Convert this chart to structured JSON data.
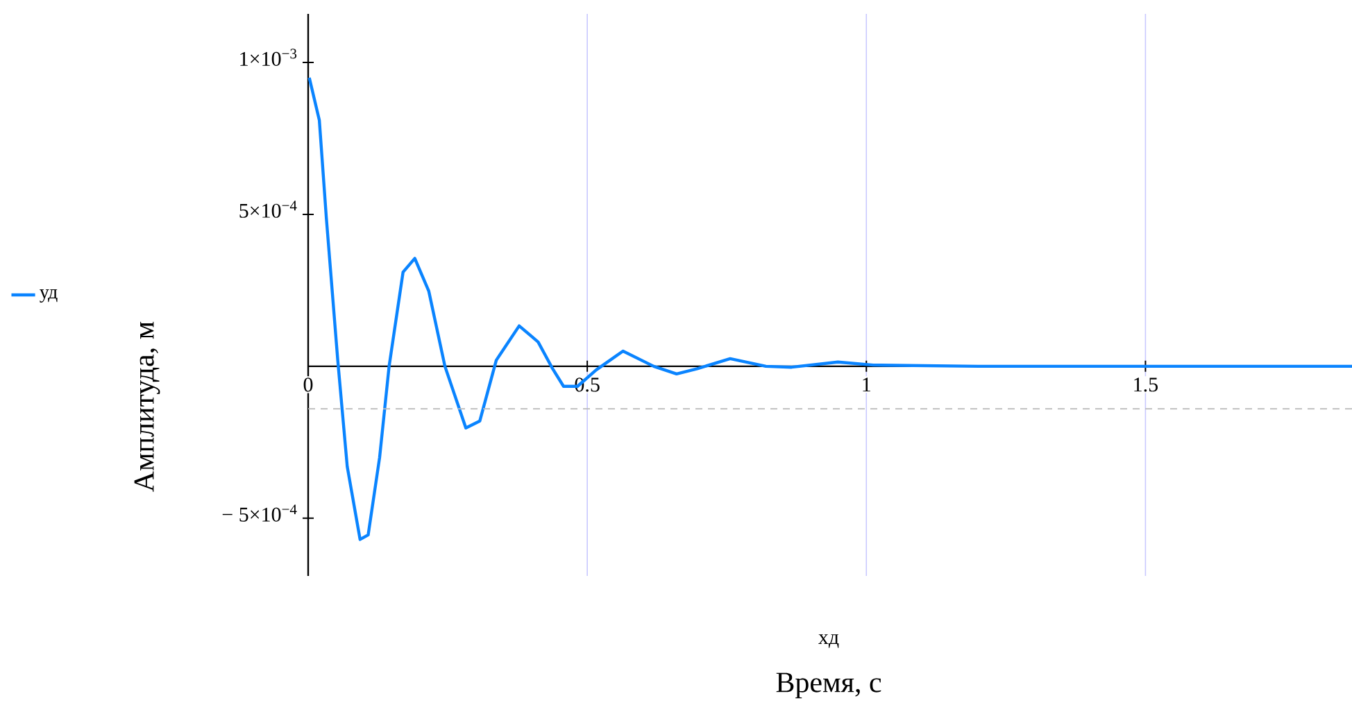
{
  "chart_data": {
    "type": "line",
    "xlabel": "Время, с",
    "ylabel": "Амплитуда, м",
    "annotations": [
      "хд"
    ],
    "x": [
      0.002,
      0.02,
      0.0325,
      0.053,
      0.07,
      0.093,
      0.1075,
      0.128,
      0.145,
      0.17,
      0.191,
      0.216,
      0.245,
      0.2825,
      0.3075,
      0.337,
      0.378,
      0.412,
      0.437,
      0.4575,
      0.4825,
      0.516,
      0.564,
      0.619,
      0.66,
      0.697,
      0.756,
      0.82,
      0.866,
      0.949,
      1.0125,
      1.2,
      1.5,
      1.87
    ],
    "series": [
      {
        "name": "уд",
        "color": "#0a84ff",
        "values": [
          0.00095,
          0.00081,
          0.00049,
          2e-05,
          -0.00033,
          -0.00057,
          -0.000555,
          -0.0003,
          0,
          0.00031,
          0.000355,
          0.000248,
          0,
          -0.000203,
          -0.00018,
          2e-05,
          0.000133,
          8e-05,
          -5e-06,
          -6.6e-05,
          -6.6e-05,
          -1.2e-05,
          5e-05,
          0,
          -2.5e-05,
          -8e-06,
          2.5e-05,
          0,
          -3e-06,
          1.4e-05,
          4e-06,
          0,
          0,
          0
        ]
      }
    ],
    "xlim": [
      0,
      1.87
    ],
    "ylim": [
      -0.00069,
      0.00116
    ],
    "xticks": [
      0,
      0.5,
      1,
      1.5
    ],
    "yticks": [
      {
        "value": -0.0005,
        "label": "− 5×10$^{−4}$"
      },
      {
        "value": 0.0005,
        "label": "5×10$^{−4}$"
      },
      {
        "value": 0.001,
        "label": "1×10$^{−3}$"
      }
    ],
    "ref_lines": [
      {
        "axis": "y",
        "value": -0.00014,
        "color": "#bbbbbb",
        "line_style": "dashed"
      }
    ],
    "grid": "x",
    "legend": "left",
    "line_style": "solid",
    "marker": "none"
  }
}
